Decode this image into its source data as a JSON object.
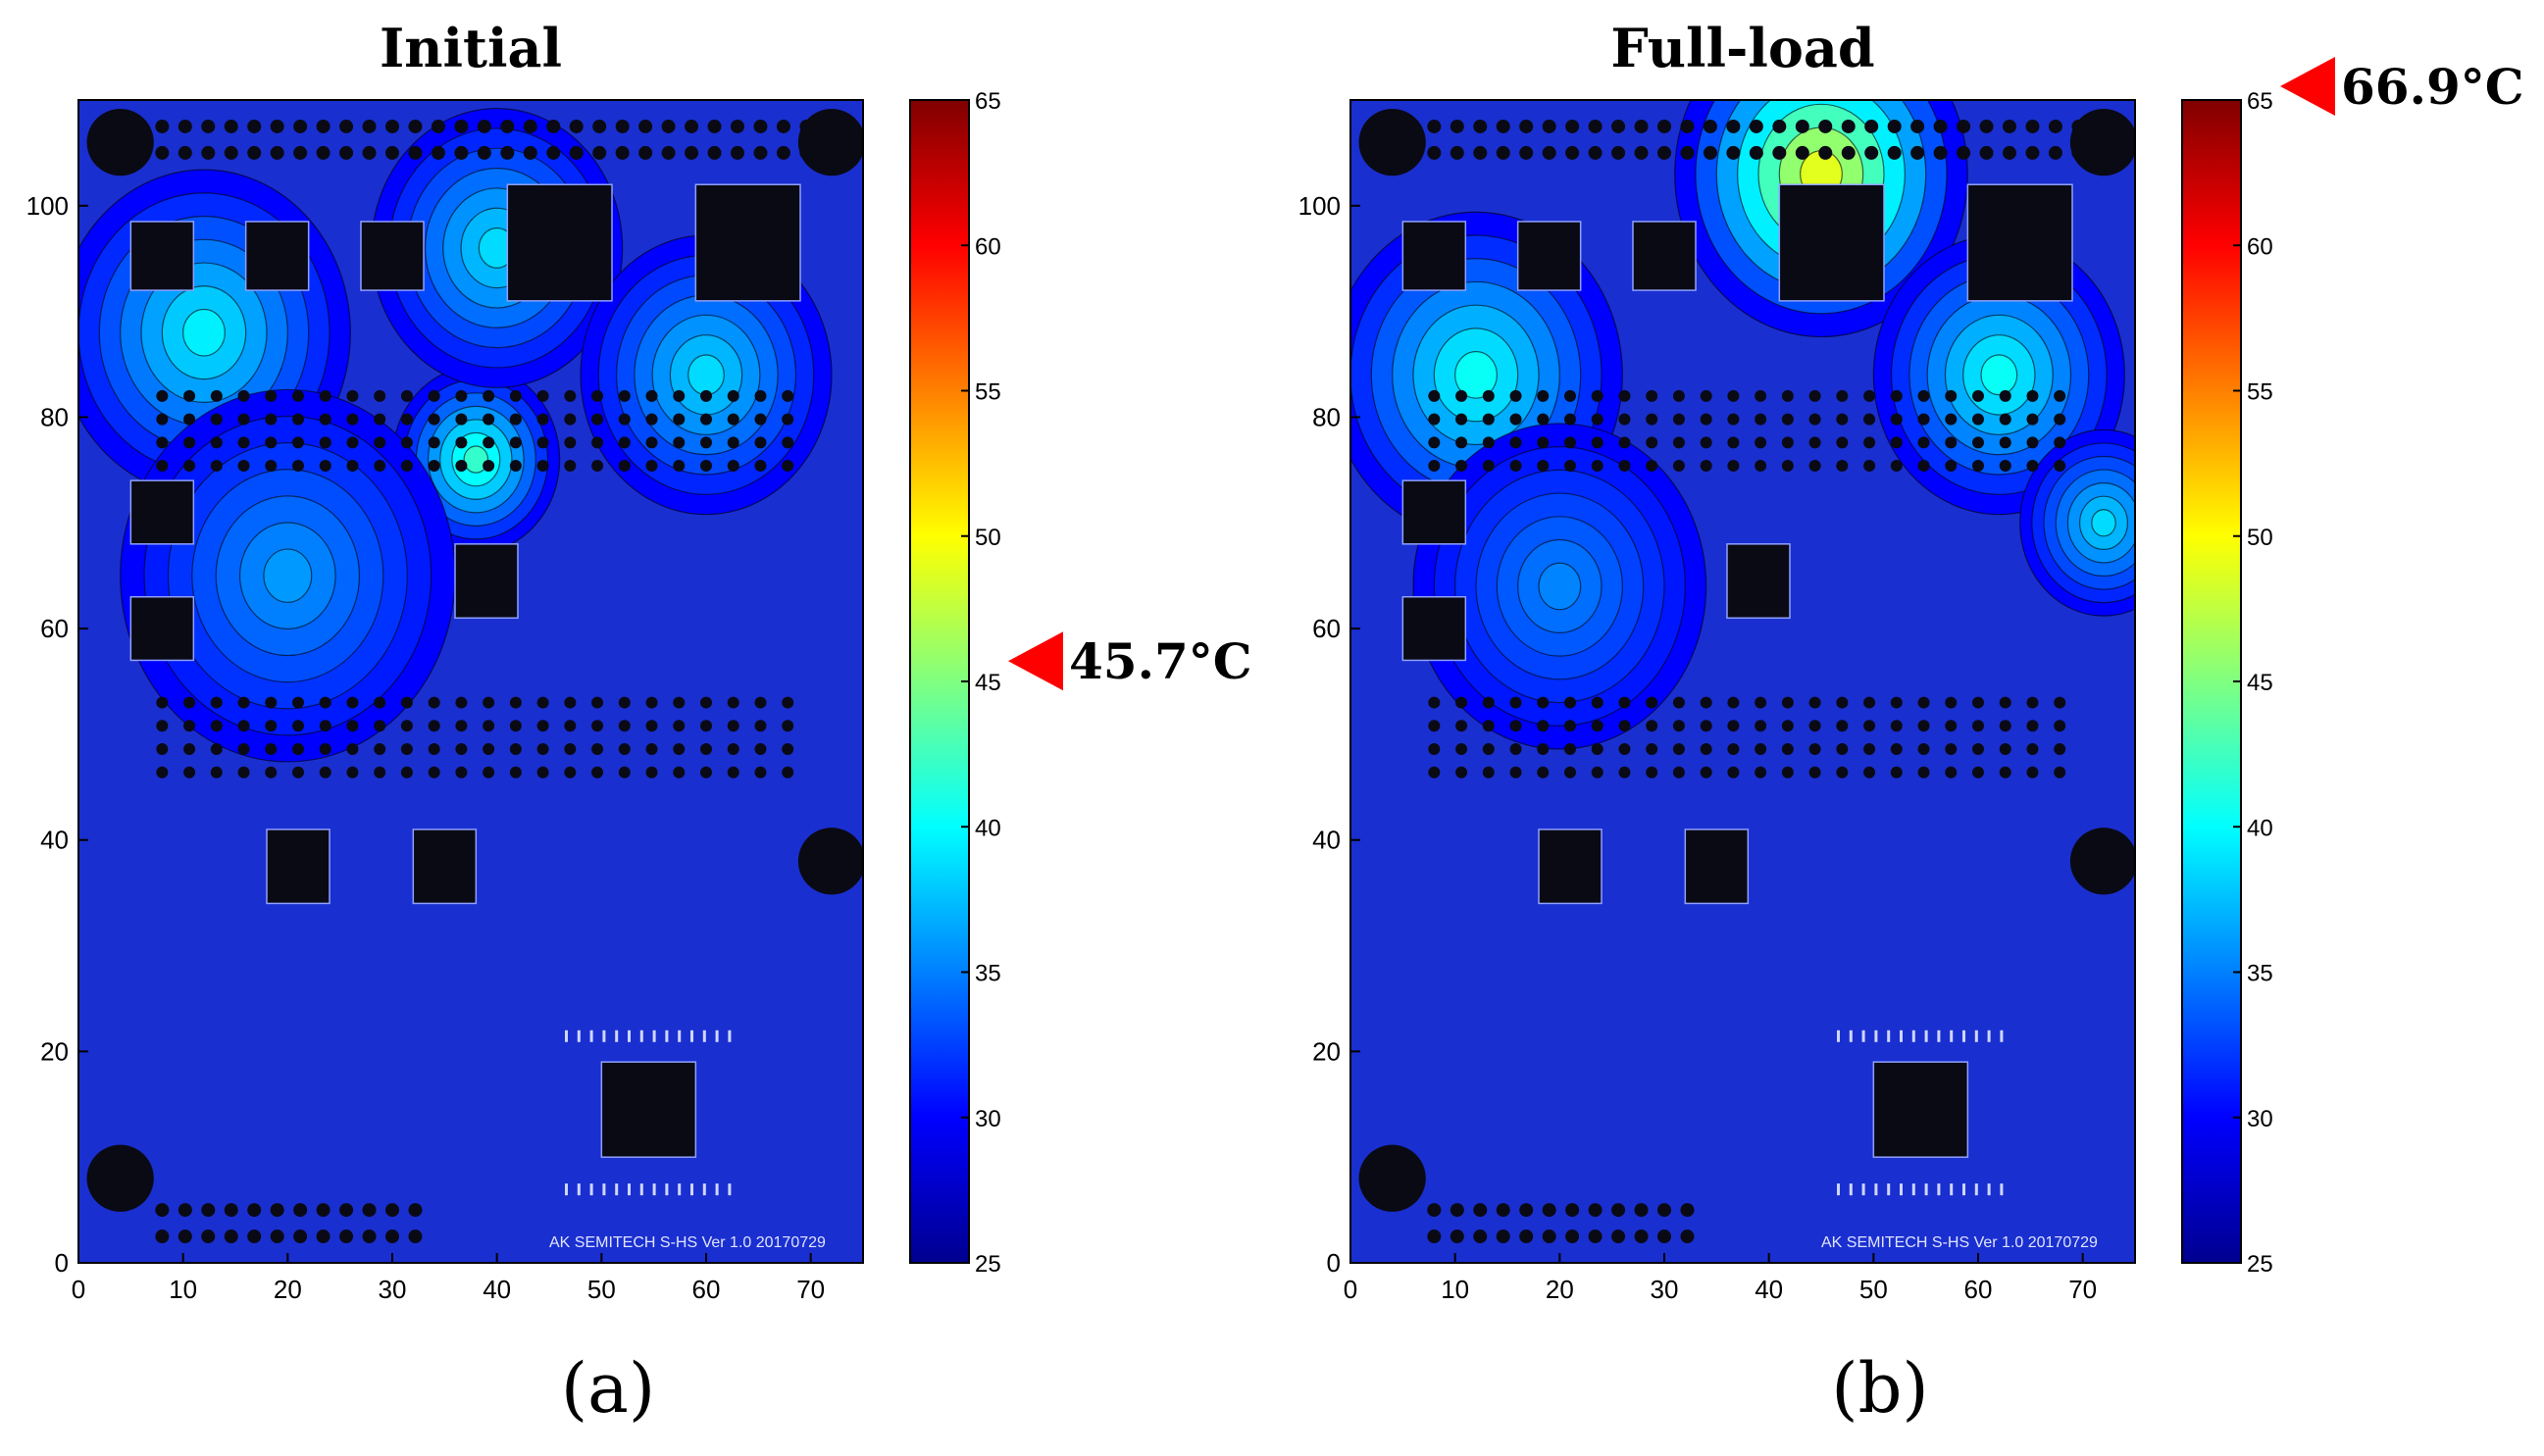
{
  "colors": {
    "jet": [
      "#00008f",
      "#0000ff",
      "#0080ff",
      "#00ffff",
      "#80ff80",
      "#ffff00",
      "#ff8000",
      "#ff0000",
      "#800000"
    ],
    "board_base": "#1a2fd0",
    "component": "#0a0a14",
    "pad": "#0a0a14",
    "marker": "#ff0000"
  },
  "chart_data": [
    {
      "type": "heatmap",
      "panel_label": "(a)",
      "title": "Initial",
      "x_ticks": [
        0,
        10,
        20,
        30,
        40,
        50,
        60,
        70
      ],
      "y_ticks": [
        0,
        20,
        40,
        60,
        80,
        100
      ],
      "xlim": [
        0,
        75
      ],
      "ylim": [
        0,
        110
      ],
      "colorbar": {
        "range": [
          25,
          65
        ],
        "ticks": [
          25,
          30,
          35,
          40,
          45,
          50,
          55,
          60,
          65
        ]
      },
      "max_marker": {
        "value": 45.7,
        "label": "45.7°C"
      },
      "hotspots": [
        {
          "x": 12,
          "y": 88,
          "temp": 41,
          "spread": 14
        },
        {
          "x": 38,
          "y": 76,
          "temp": 44,
          "spread": 8
        },
        {
          "x": 40,
          "y": 96,
          "temp": 40,
          "spread": 12
        },
        {
          "x": 60,
          "y": 84,
          "temp": 40,
          "spread": 12
        },
        {
          "x": 20,
          "y": 65,
          "temp": 37,
          "spread": 16
        }
      ],
      "board_text": "AK SEMITECH S-HS Ver 1.0  20170729"
    },
    {
      "type": "heatmap",
      "panel_label": "(b)",
      "title": "Full-load",
      "x_ticks": [
        0,
        10,
        20,
        30,
        40,
        50,
        60,
        70
      ],
      "y_ticks": [
        0,
        20,
        40,
        60,
        80,
        100
      ],
      "xlim": [
        0,
        75
      ],
      "ylim": [
        0,
        110
      ],
      "colorbar": {
        "range": [
          25,
          65
        ],
        "ticks": [
          25,
          30,
          35,
          40,
          45,
          50,
          55,
          60,
          65
        ]
      },
      "max_marker": {
        "value": 66.9,
        "label": "66.9°C"
      },
      "hotspots": [
        {
          "x": 45,
          "y": 96,
          "temp": 65,
          "spread": 7
        },
        {
          "x": 45,
          "y": 103,
          "temp": 52,
          "spread": 14
        },
        {
          "x": 12,
          "y": 84,
          "temp": 42,
          "spread": 14
        },
        {
          "x": 62,
          "y": 84,
          "temp": 42,
          "spread": 12
        },
        {
          "x": 72,
          "y": 70,
          "temp": 40,
          "spread": 8
        },
        {
          "x": 20,
          "y": 64,
          "temp": 36,
          "spread": 14
        }
      ],
      "board_text": "AK SEMITECH S-HS Ver 1.0  20170729"
    }
  ]
}
